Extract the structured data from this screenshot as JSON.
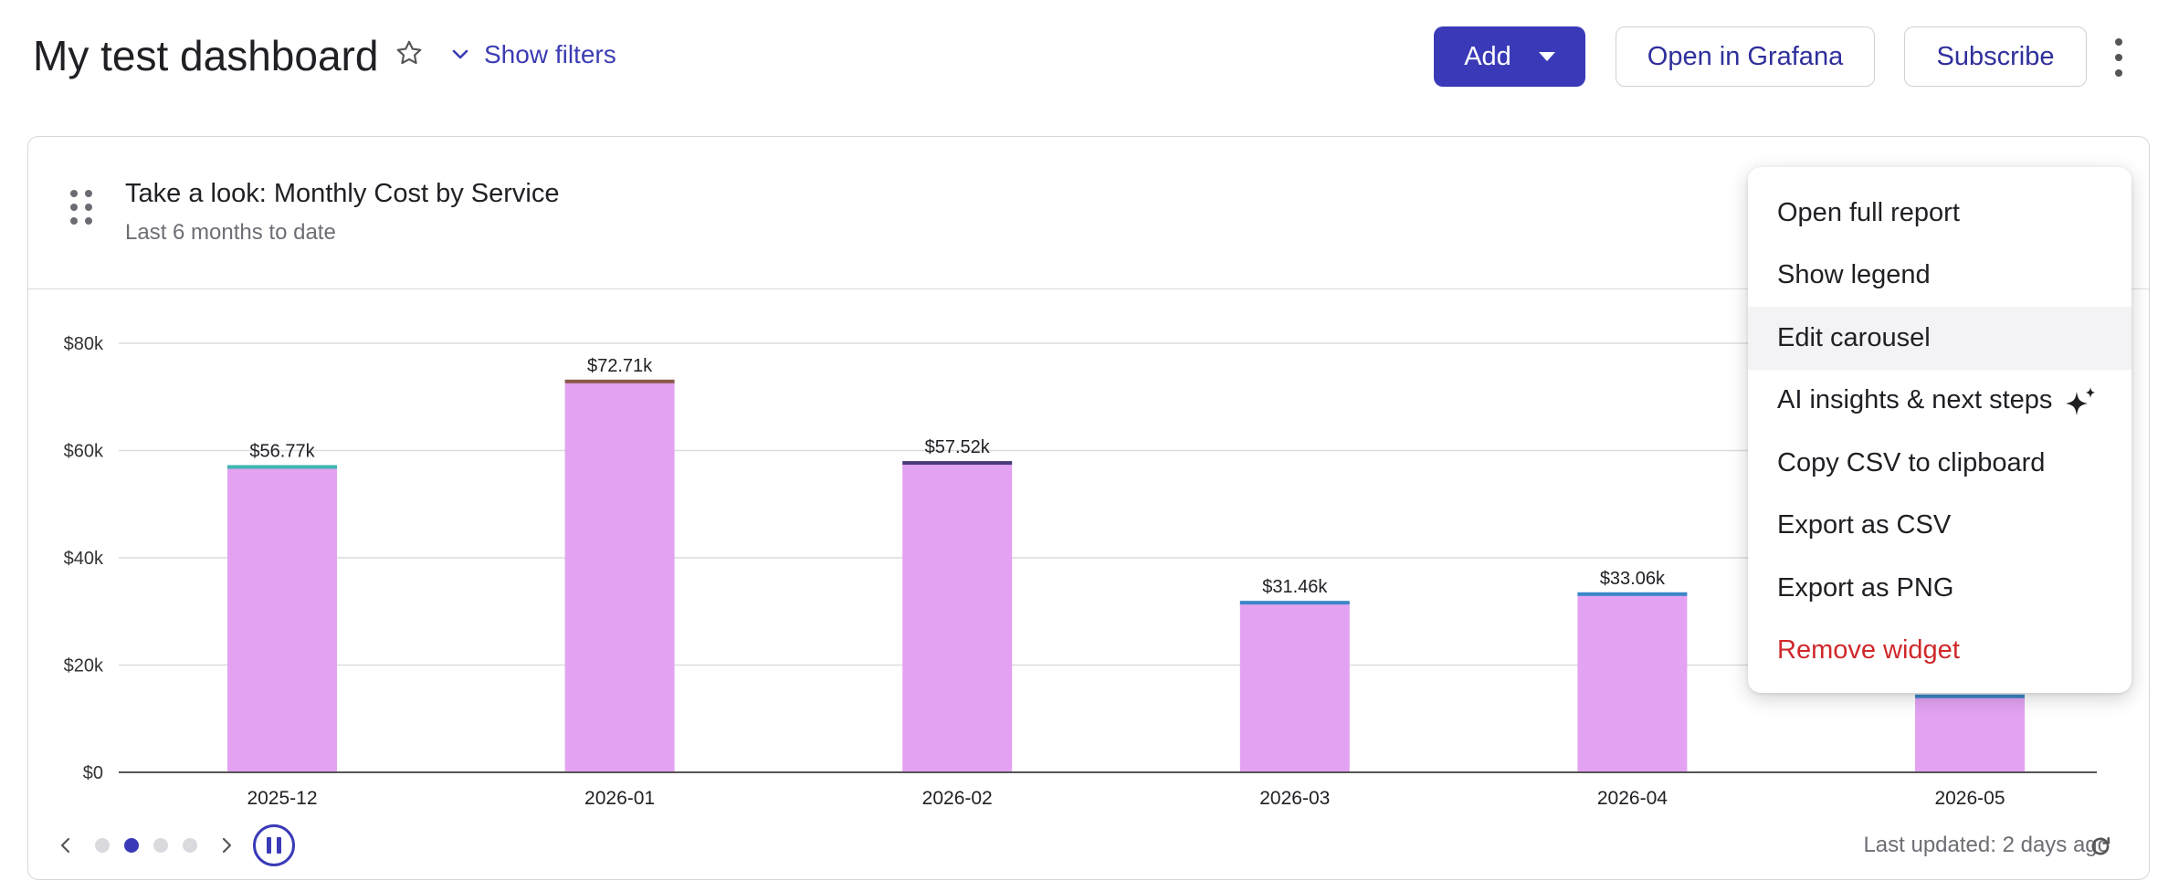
{
  "header": {
    "title": "My test dashboard",
    "star_icon": "star-icon",
    "filters_label": "Show filters",
    "add_label": "Add",
    "grafana_label": "Open in Grafana",
    "subscribe_label": "Subscribe",
    "more_icon": "kebab-menu-icon"
  },
  "widget": {
    "title": "Take a look: Monthly Cost by Service",
    "subtitle": "Last 6 months to date",
    "last_updated": "Last updated: 2 days ago",
    "carousel": {
      "pages": 4,
      "active": 1
    }
  },
  "menu": {
    "items": [
      {
        "label": "Open full report"
      },
      {
        "label": "Show legend"
      },
      {
        "label": "Edit carousel"
      },
      {
        "label": "AI insights & next steps"
      },
      {
        "label": "Copy CSV to clipboard"
      },
      {
        "label": "Export as CSV"
      },
      {
        "label": "Export as PNG"
      },
      {
        "label": "Remove widget"
      }
    ]
  },
  "colors": {
    "accent": "#3a3ab8",
    "bar": "#e3a2f2",
    "danger": "#d0282b",
    "cap_teal": "#3fb6b0",
    "cap_blue": "#3a86c8",
    "cap_dark": "#4a3a7a",
    "cap_brown": "#8a5a4a"
  },
  "chart_data": {
    "type": "bar",
    "stacked": true,
    "categories": [
      "2025-12",
      "2026-01",
      "2026-02",
      "2026-03",
      "2026-04",
      "2026-05"
    ],
    "values": [
      56770,
      72710,
      57520,
      31460,
      33060,
      14000
    ],
    "value_labels": [
      "$56.77k",
      "$72.71k",
      "$57.52k",
      "$31.46k",
      "$33.06k",
      ""
    ],
    "ylim": [
      0,
      80000
    ],
    "y_ticks": [
      0,
      20000,
      40000,
      60000,
      80000
    ],
    "y_tick_labels": [
      "$0",
      "$20k",
      "$40k",
      "$60k",
      "$80k"
    ],
    "grid": true,
    "legend": "hidden",
    "title": "",
    "xlabel": "",
    "ylabel": ""
  }
}
